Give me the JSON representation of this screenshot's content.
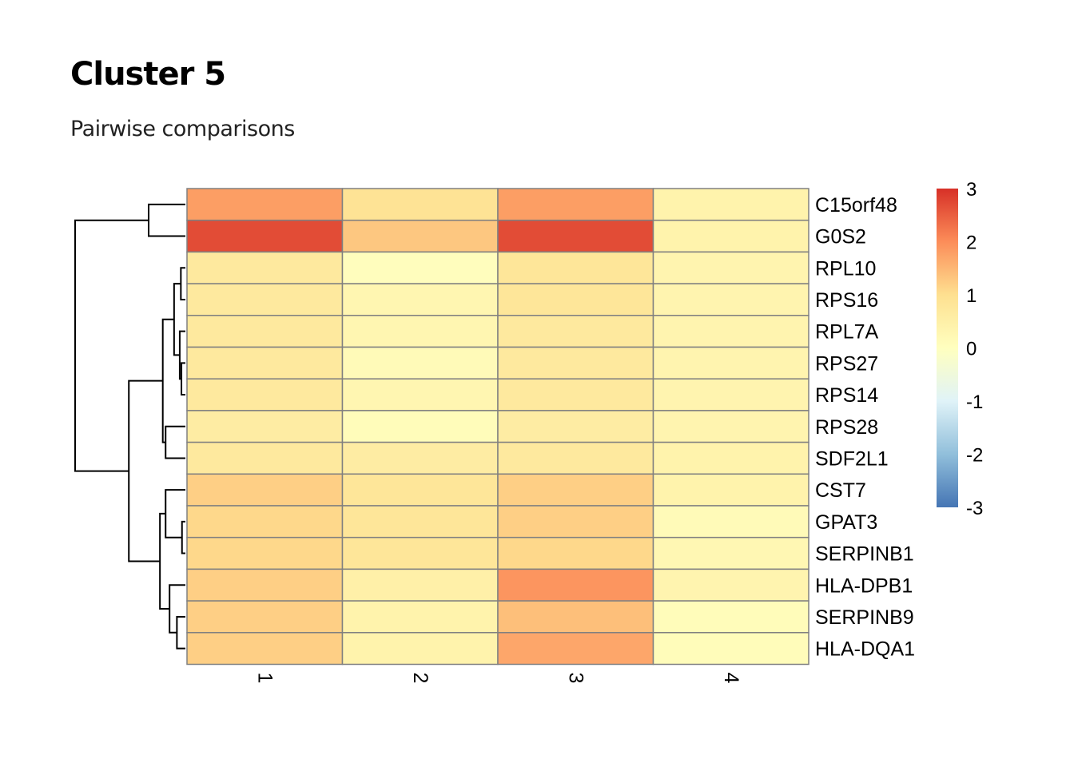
{
  "chart_data": {
    "type": "heatmap",
    "title": "Cluster 5",
    "subtitle": "Pairwise comparisons",
    "columns": [
      "1",
      "2",
      "3",
      "4"
    ],
    "rows": [
      "C15orf48",
      "G0S2",
      "RPL10",
      "RPS16",
      "RPL7A",
      "RPS27",
      "RPS14",
      "RPS28",
      "SDF2L1",
      "CST7",
      "GPAT3",
      "SERPINB1",
      "HLA-DPB1",
      "SERPINB9",
      "HLA-DQA1"
    ],
    "values": [
      [
        1.8,
        0.9,
        1.8,
        0.4
      ],
      [
        2.7,
        1.3,
        2.7,
        0.4
      ],
      [
        0.7,
        0.05,
        0.8,
        0.35
      ],
      [
        0.7,
        0.3,
        0.8,
        0.35
      ],
      [
        0.7,
        0.3,
        0.7,
        0.35
      ],
      [
        0.7,
        0.15,
        0.7,
        0.35
      ],
      [
        0.7,
        0.3,
        0.7,
        0.35
      ],
      [
        0.6,
        0.1,
        0.6,
        0.35
      ],
      [
        0.7,
        0.6,
        0.7,
        0.4
      ],
      [
        1.2,
        0.8,
        1.2,
        0.4
      ],
      [
        1.1,
        0.8,
        1.2,
        0.15
      ],
      [
        1.1,
        0.8,
        1.1,
        0.25
      ],
      [
        1.2,
        0.5,
        1.9,
        0.35
      ],
      [
        1.2,
        0.4,
        1.4,
        0.1
      ],
      [
        1.2,
        0.4,
        1.7,
        0.1
      ]
    ],
    "legend": {
      "ticks": [
        "3",
        "2",
        "1",
        "0",
        "-1",
        "-2",
        "-3"
      ],
      "range": [
        -3,
        3
      ],
      "placement": "right",
      "colors": [
        "#D73027",
        "#FC8D59",
        "#FEE090",
        "#FFFFBF",
        "#E0F3F8",
        "#91BFDB",
        "#4575B4"
      ]
    },
    "cell_border_color": "#808080",
    "dendrogram": {
      "side": "left",
      "merges": [
        {
          "a": "RPS16",
          "b": "RPL10",
          "h": 0.08
        },
        {
          "a": "RPS14",
          "b": "RPS27",
          "h": 0.07
        },
        {
          "a": "RPL7A",
          "b": "c2",
          "h": 0.1
        },
        {
          "a": "c1",
          "b": "c3",
          "h": 0.2
        },
        {
          "a": "RPS28",
          "b": "SDF2L1",
          "h": 0.35
        },
        {
          "a": "c4",
          "b": "c5",
          "h": 0.4
        },
        {
          "a": "SERPINB1",
          "b": "GPAT3",
          "h": 0.06
        },
        {
          "a": "CST7",
          "b": "c7",
          "h": 0.35
        },
        {
          "a": "HLA-DQA1",
          "b": "SERPINB9",
          "h": 0.15
        },
        {
          "a": "HLA-DPB1",
          "b": "c9",
          "h": 0.28
        },
        {
          "a": "c8",
          "b": "c10",
          "h": 0.45
        },
        {
          "a": "c6",
          "b": "c11",
          "h": 1.0
        },
        {
          "a": "C15orf48",
          "b": "G0S2",
          "h": 0.65
        },
        {
          "a": "c13",
          "b": "c12",
          "h": 1.95
        }
      ]
    }
  }
}
